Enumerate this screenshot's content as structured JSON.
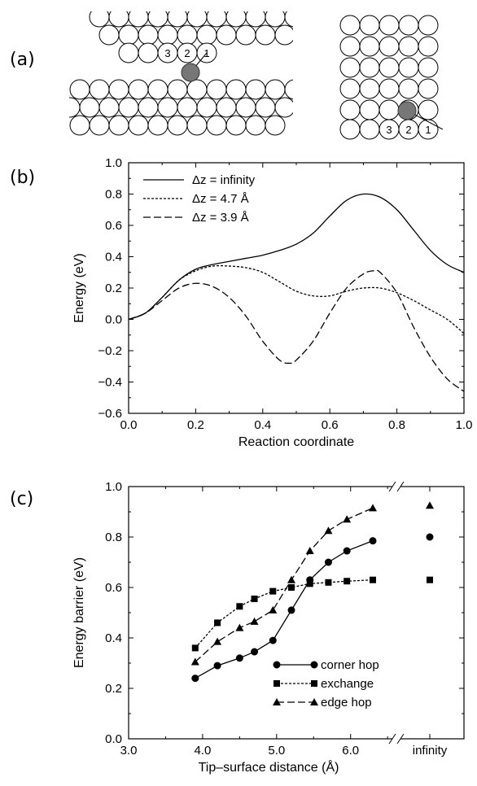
{
  "panel_labels": {
    "a": "(a)",
    "b": "(b)",
    "c": "(c)"
  },
  "panel_a": {
    "left_atom_labels": [
      "3",
      "2",
      "1"
    ],
    "right_atom_labels": [
      "3",
      "2",
      "1"
    ]
  },
  "chart_data": [
    {
      "type": "line",
      "panel": "b",
      "title": "",
      "xlabel": "Reaction coordinate",
      "ylabel": "Energy  (eV)",
      "xlim": [
        0.0,
        1.0
      ],
      "ylim": [
        -0.6,
        1.0
      ],
      "x_ticks": [
        0.0,
        0.2,
        0.4,
        0.6,
        0.8,
        1.0
      ],
      "x_tick_labels": [
        "0.0",
        "0.2",
        "0.4",
        "0.6",
        "0.8",
        "1.0"
      ],
      "y_ticks": [
        -0.6,
        -0.4,
        -0.2,
        0.0,
        0.2,
        0.4,
        0.6,
        0.8,
        1.0
      ],
      "y_tick_labels": [
        "−0.6",
        "−0.4",
        "−0.2",
        "0.0",
        "0.2",
        "0.4",
        "0.6",
        "0.8",
        "1.0"
      ],
      "grid": false,
      "legend": "top-left",
      "series": [
        {
          "name": "Δz = infinity",
          "style": "solid",
          "x": [
            0.0,
            0.05,
            0.1,
            0.15,
            0.2,
            0.25,
            0.3,
            0.35,
            0.4,
            0.45,
            0.5,
            0.55,
            0.6,
            0.65,
            0.7,
            0.75,
            0.8,
            0.85,
            0.9,
            0.95,
            1.0
          ],
          "y": [
            0.0,
            0.04,
            0.14,
            0.25,
            0.32,
            0.35,
            0.37,
            0.39,
            0.41,
            0.44,
            0.48,
            0.55,
            0.66,
            0.76,
            0.8,
            0.78,
            0.7,
            0.57,
            0.44,
            0.35,
            0.3
          ]
        },
        {
          "name": "Δz = 4.7 Å",
          "style": "dotted",
          "x": [
            0.0,
            0.05,
            0.1,
            0.15,
            0.2,
            0.25,
            0.3,
            0.35,
            0.4,
            0.45,
            0.5,
            0.55,
            0.6,
            0.65,
            0.7,
            0.75,
            0.8,
            0.85,
            0.9,
            0.95,
            1.0
          ],
          "y": [
            0.0,
            0.04,
            0.14,
            0.25,
            0.31,
            0.34,
            0.34,
            0.33,
            0.3,
            0.24,
            0.18,
            0.15,
            0.15,
            0.18,
            0.2,
            0.2,
            0.17,
            0.12,
            0.06,
            0.0,
            -0.09
          ]
        },
        {
          "name": "Δz = 3.9 Å",
          "style": "dashed",
          "x": [
            0.0,
            0.05,
            0.1,
            0.15,
            0.2,
            0.25,
            0.3,
            0.35,
            0.4,
            0.45,
            0.48,
            0.5,
            0.55,
            0.6,
            0.65,
            0.7,
            0.73,
            0.75,
            0.8,
            0.85,
            0.9,
            0.95,
            1.0
          ],
          "y": [
            0.0,
            0.04,
            0.12,
            0.2,
            0.23,
            0.21,
            0.14,
            0.02,
            -0.14,
            -0.26,
            -0.28,
            -0.26,
            -0.14,
            0.04,
            0.2,
            0.29,
            0.31,
            0.3,
            0.17,
            -0.05,
            -0.24,
            -0.38,
            -0.46
          ]
        }
      ]
    },
    {
      "type": "line",
      "panel": "c",
      "title": "",
      "xlabel": "Tip–surface distance  (Å)",
      "ylabel": "Energy barrier  (eV)",
      "xlim": [
        3.0,
        7.0
      ],
      "ylim": [
        0.0,
        1.0
      ],
      "axis_break": true,
      "x_ticks": [
        3.0,
        4.0,
        5.0,
        6.0
      ],
      "x_tick_labels": [
        "3.0",
        "4.0",
        "5.0",
        "6.0"
      ],
      "x_extra_label": "infinity",
      "y_ticks": [
        0.0,
        0.2,
        0.4,
        0.6,
        0.8,
        1.0
      ],
      "y_tick_labels": [
        "0.0",
        "0.2",
        "0.4",
        "0.6",
        "0.8",
        "1.0"
      ],
      "grid": false,
      "legend": "bottom-right",
      "series": [
        {
          "name": "corner hop",
          "style": "solid",
          "marker": "circle",
          "x": [
            3.9,
            4.2,
            4.5,
            4.7,
            4.95,
            5.2,
            5.45,
            5.7,
            5.95,
            6.3
          ],
          "y": [
            0.24,
            0.29,
            0.32,
            0.345,
            0.39,
            0.51,
            0.63,
            0.7,
            0.745,
            0.785
          ],
          "infinity_value": 0.8
        },
        {
          "name": "exchange",
          "style": "dotted",
          "marker": "square",
          "x": [
            3.9,
            4.2,
            4.5,
            4.7,
            4.95,
            5.2,
            5.45,
            5.7,
            5.95,
            6.3
          ],
          "y": [
            0.36,
            0.46,
            0.525,
            0.555,
            0.585,
            0.6,
            0.615,
            0.62,
            0.625,
            0.63
          ],
          "infinity_value": 0.63
        },
        {
          "name": "edge hop",
          "style": "dashed",
          "marker": "triangle",
          "x": [
            3.9,
            4.2,
            4.5,
            4.7,
            4.95,
            5.2,
            5.45,
            5.7,
            5.95,
            6.3
          ],
          "y": [
            0.305,
            0.385,
            0.44,
            0.465,
            0.51,
            0.63,
            0.745,
            0.825,
            0.87,
            0.915
          ],
          "infinity_value": 0.925
        }
      ]
    }
  ]
}
